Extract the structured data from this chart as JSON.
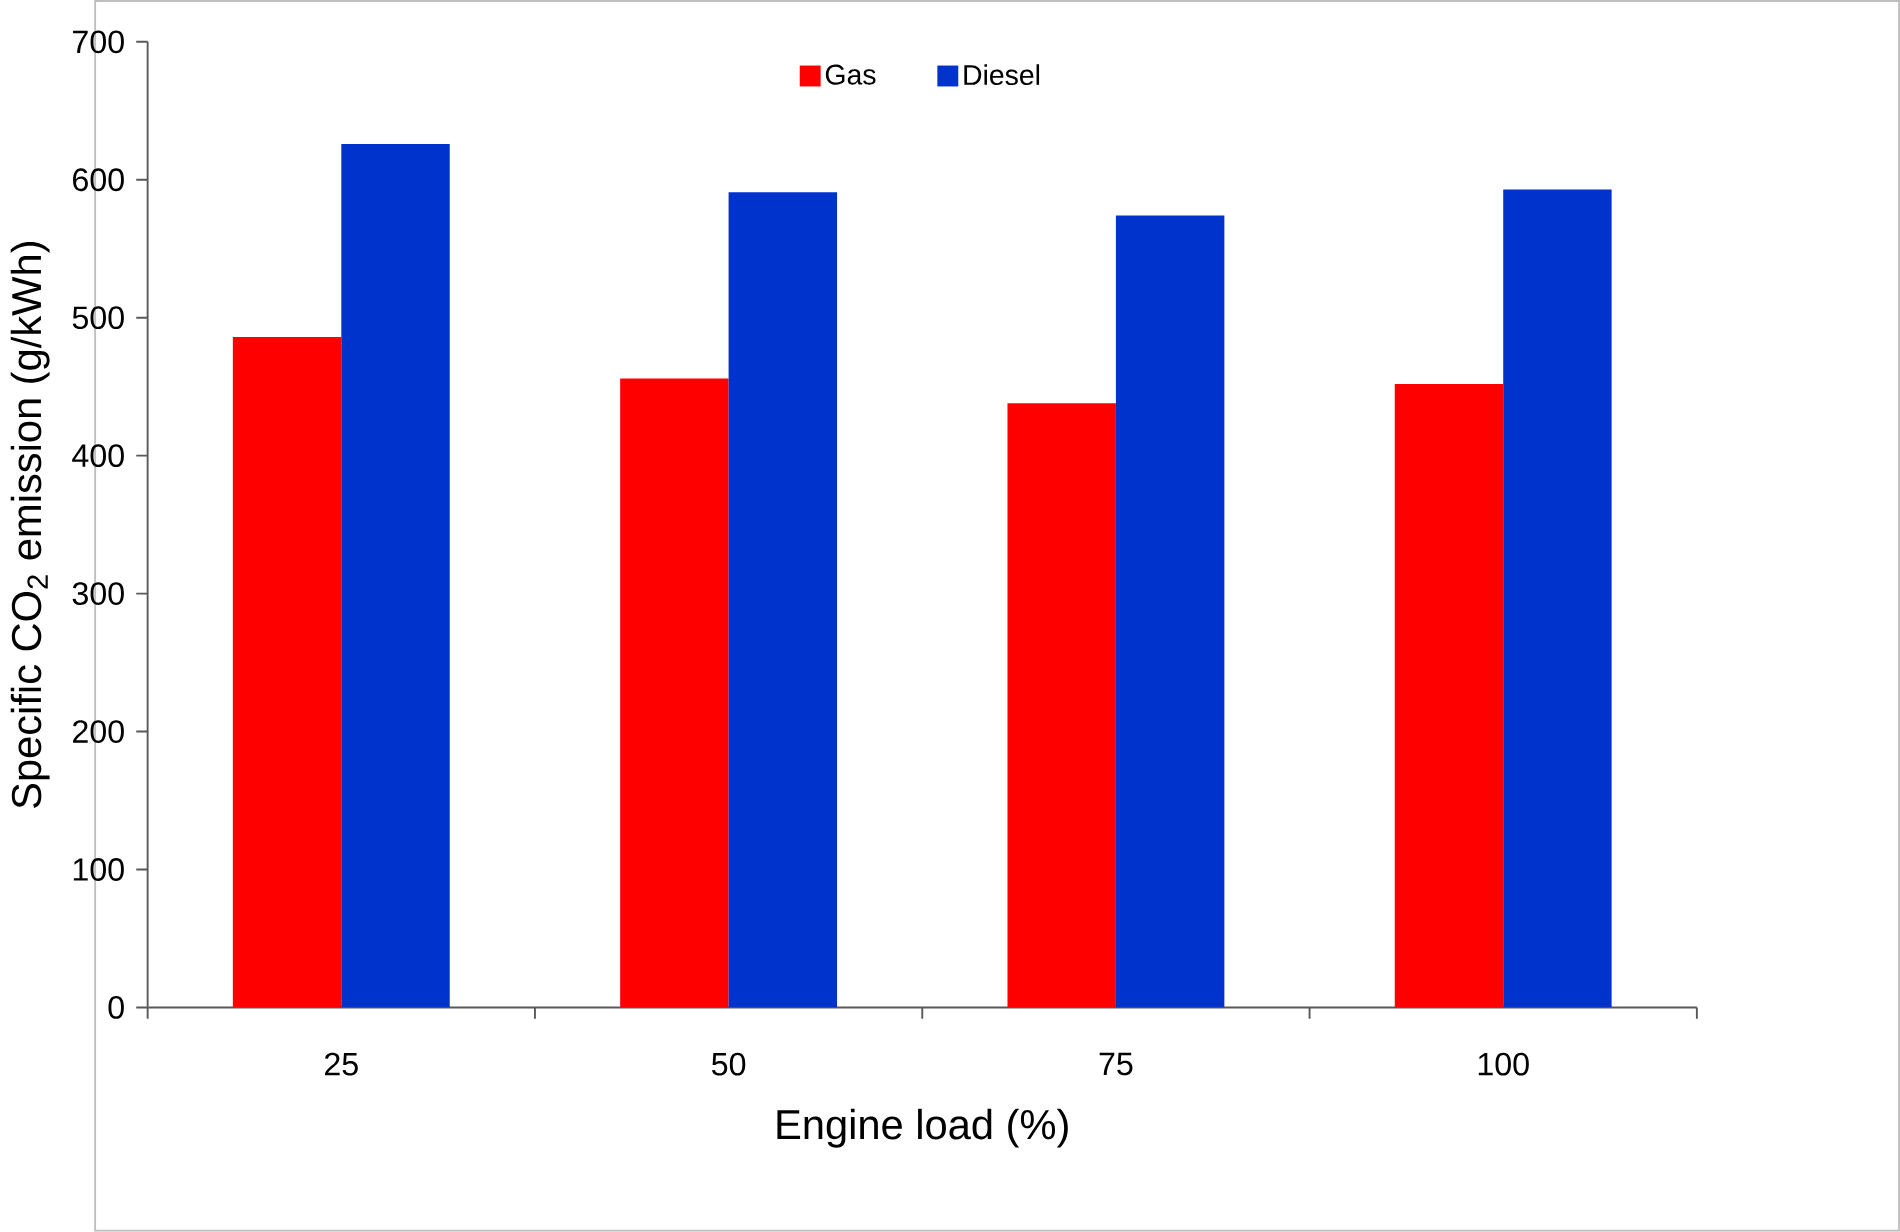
{
  "chart_data": {
    "type": "bar",
    "xlabel": "Engine load (%)",
    "ylabel": "Specific CO$_{2}$ emission (g/kWh)",
    "categories": [
      "25",
      "50",
      "75",
      "100"
    ],
    "series": [
      {
        "name": "Gas",
        "color": "#ff0000",
        "values": [
          486,
          456,
          438,
          452
        ]
      },
      {
        "name": "Diesel",
        "color": "#0033cc",
        "values": [
          626,
          591,
          574,
          593
        ]
      }
    ],
    "ylim": [
      0,
      700
    ],
    "yticks": [
      0,
      100,
      200,
      300,
      400,
      500,
      600,
      700
    ],
    "grid": false,
    "legend": "top"
  }
}
